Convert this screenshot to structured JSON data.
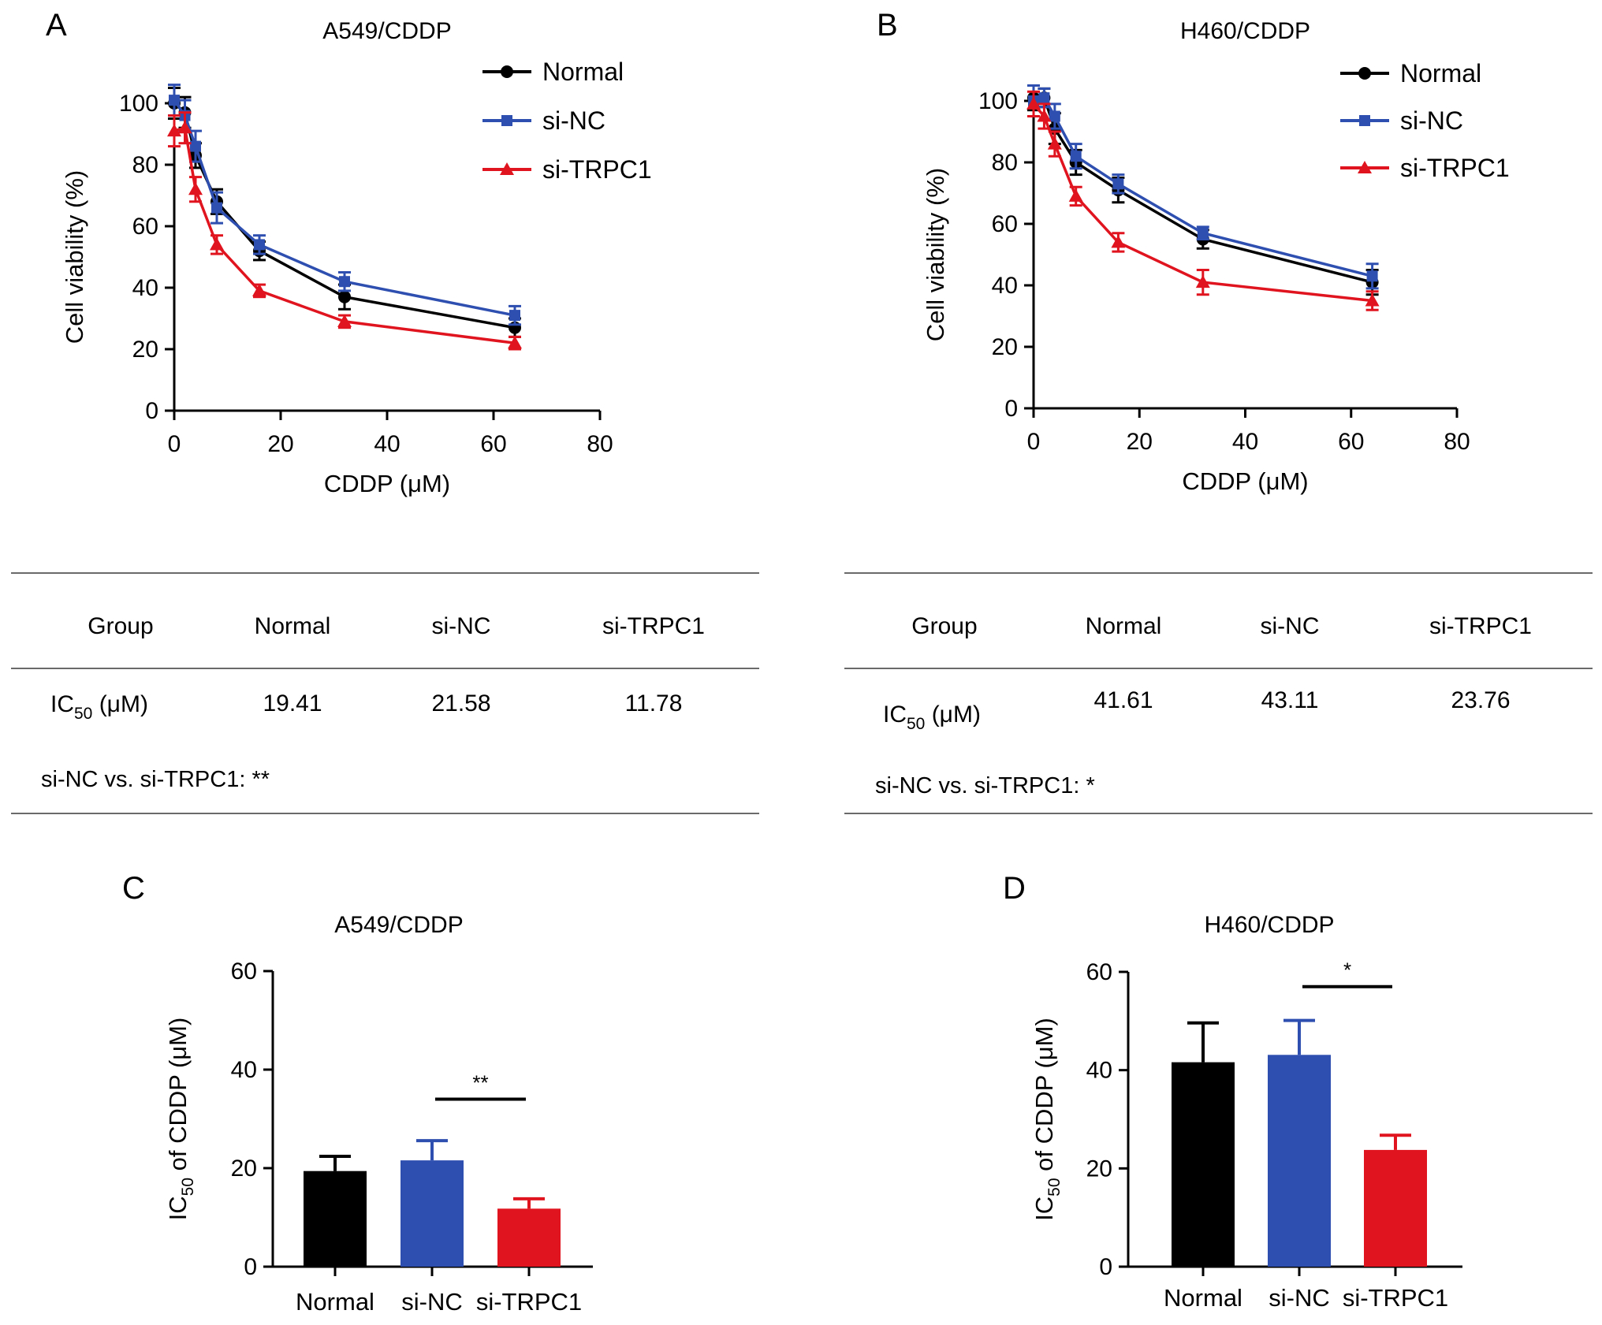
{
  "figure_label_note": "Panels A–D",
  "colors": {
    "normal": "#000000",
    "si_nc": "#2f4fb0",
    "si_trpc1": "#e0141e",
    "rule": "#6a6a6a"
  },
  "panels": {
    "A": {
      "letter": "A"
    },
    "B": {
      "letter": "B"
    },
    "C": {
      "letter": "C"
    },
    "D": {
      "letter": "D"
    }
  },
  "tables": [
    {
      "header": [
        "Group",
        "Normal",
        "si-NC",
        "si-TRPC1"
      ],
      "ic50_label_main": "IC",
      "ic50_label_sub": "50",
      "ic50_label_unit": " (μM)",
      "values": [
        "19.41",
        "21.58",
        "11.78"
      ],
      "significance": "si-NC vs. si-TRPC1: **"
    },
    {
      "header": [
        "Group",
        "Normal",
        "si-NC",
        "si-TRPC1"
      ],
      "ic50_label_main": "IC",
      "ic50_label_sub": "50",
      "ic50_label_unit": " (μM)",
      "values": [
        "41.61",
        "43.11",
        "23.76"
      ],
      "significance": "si-NC vs. si-TRPC1: *"
    }
  ],
  "chart_data": [
    {
      "panel": "A",
      "type": "line",
      "title": "A549/CDDP",
      "xlabel": "CDDP (μM)",
      "ylabel": "Cell viability (%)",
      "xlim": [
        0,
        80
      ],
      "ylim": [
        0,
        100
      ],
      "xticks": [
        0,
        20,
        40,
        60,
        80
      ],
      "yticks": [
        0,
        20,
        40,
        60,
        80,
        100
      ],
      "legend_position": "top-right",
      "x": [
        0,
        2,
        4,
        8,
        16,
        32,
        64
      ],
      "series": [
        {
          "name": "Normal",
          "marker": "circle",
          "color": "#000000",
          "values": [
            100,
            97,
            83,
            68,
            52,
            37,
            27
          ],
          "errors": [
            5,
            5,
            4,
            4,
            3,
            4,
            3
          ]
        },
        {
          "name": "si-NC",
          "marker": "square",
          "color": "#2f4fb0",
          "values": [
            101,
            96,
            86,
            66,
            54,
            42,
            31
          ],
          "errors": [
            5,
            5,
            5,
            5,
            3,
            3,
            3
          ]
        },
        {
          "name": "si-TRPC1",
          "marker": "triangle",
          "color": "#e0141e",
          "values": [
            91,
            92,
            72,
            54,
            39,
            29,
            22
          ],
          "errors": [
            5,
            5,
            4,
            3,
            2,
            2,
            2
          ]
        }
      ]
    },
    {
      "panel": "B",
      "type": "line",
      "title": "H460/CDDP",
      "xlabel": "CDDP (μM)",
      "ylabel": "Cell viability (%)",
      "xlim": [
        0,
        80
      ],
      "ylim": [
        0,
        100
      ],
      "xticks": [
        0,
        20,
        40,
        60,
        80
      ],
      "yticks": [
        0,
        20,
        40,
        60,
        80,
        100
      ],
      "legend_position": "top-right",
      "x": [
        0,
        2,
        4,
        8,
        16,
        32,
        64
      ],
      "series": [
        {
          "name": "Normal",
          "marker": "circle",
          "color": "#000000",
          "values": [
            101,
            101,
            91,
            80,
            71,
            55,
            41
          ],
          "errors": [
            4,
            3,
            5,
            4,
            4,
            3,
            4
          ]
        },
        {
          "name": "si-NC",
          "marker": "square",
          "color": "#2f4fb0",
          "values": [
            100,
            101,
            95,
            82,
            73,
            57,
            43
          ],
          "errors": [
            5,
            3,
            4,
            4,
            3,
            2,
            4
          ]
        },
        {
          "name": "si-TRPC1",
          "marker": "triangle",
          "color": "#e0141e",
          "values": [
            99,
            95,
            86,
            69,
            54,
            41,
            35
          ],
          "errors": [
            4,
            4,
            4,
            3,
            3,
            4,
            3
          ]
        }
      ]
    },
    {
      "panel": "C",
      "type": "bar",
      "title": "A549/CDDP",
      "ylabel_main": "IC",
      "ylabel_sub": "50",
      "ylabel_rest": " of CDDP (μM)",
      "ylim": [
        0,
        60
      ],
      "yticks": [
        0,
        20,
        40,
        60
      ],
      "categories": [
        "Normal",
        "si-NC",
        "si-TRPC1"
      ],
      "values": [
        19.41,
        21.58,
        11.78
      ],
      "errors": [
        3,
        4,
        2
      ],
      "colors": [
        "#000000",
        "#2f4fb0",
        "#e0141e"
      ],
      "annotation": {
        "from": "si-NC",
        "to": "si-TRPC1",
        "label": "**",
        "y": 34
      }
    },
    {
      "panel": "D",
      "type": "bar",
      "title": "H460/CDDP",
      "ylabel_main": "IC",
      "ylabel_sub": "50",
      "ylabel_rest": " of CDDP (μM)",
      "ylim": [
        0,
        60
      ],
      "yticks": [
        0,
        20,
        40,
        60
      ],
      "categories": [
        "Normal",
        "si-NC",
        "si-TRPC1"
      ],
      "values": [
        41.61,
        43.11,
        23.76
      ],
      "errors": [
        8,
        7,
        3
      ],
      "colors": [
        "#000000",
        "#2f4fb0",
        "#e0141e"
      ],
      "annotation": {
        "from": "si-NC",
        "to": "si-TRPC1",
        "label": "*",
        "y": 57
      }
    }
  ]
}
